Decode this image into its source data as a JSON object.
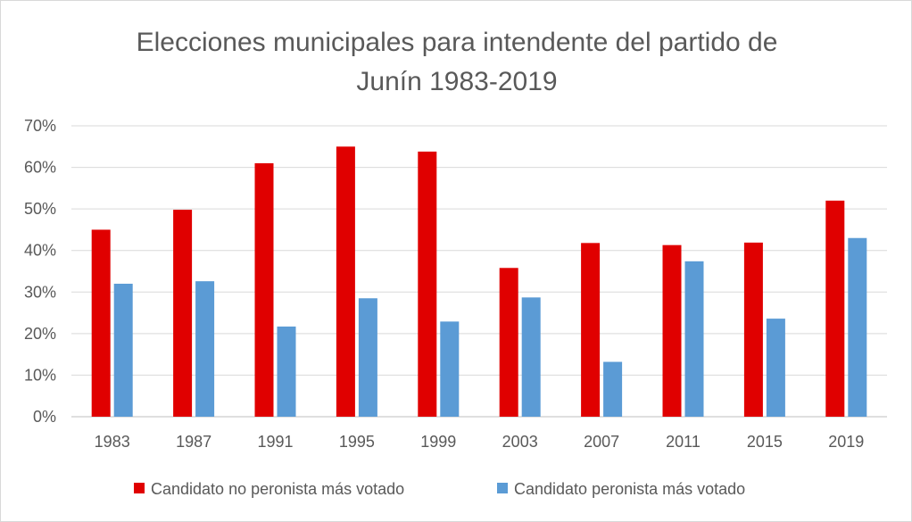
{
  "chart_data": {
    "type": "bar",
    "title_lines": [
      "Elecciones municipales para intendente del partido de",
      "Junín 1983-2019"
    ],
    "categories": [
      "1983",
      "1987",
      "1991",
      "1995",
      "1999",
      "2003",
      "2007",
      "2011",
      "2015",
      "2019"
    ],
    "series": [
      {
        "name": "Candidato no peronista más votado",
        "color": "#e00000",
        "values": [
          45.0,
          49.8,
          61.0,
          65.0,
          63.8,
          35.8,
          41.8,
          41.3,
          41.9,
          52.0
        ]
      },
      {
        "name": "Candidato peronista más votado",
        "color": "#5b9bd5",
        "values": [
          32.0,
          32.6,
          21.7,
          28.5,
          22.9,
          28.7,
          13.2,
          37.4,
          23.6,
          43.0
        ]
      }
    ],
    "ylim": [
      0,
      70
    ],
    "yticks": [
      "0%",
      "10%",
      "20%",
      "30%",
      "40%",
      "50%",
      "60%",
      "70%"
    ],
    "ytick_values": [
      0,
      10,
      20,
      30,
      40,
      50,
      60,
      70
    ],
    "grid": true,
    "legend_position": "bottom",
    "xlabel": "",
    "ylabel": ""
  }
}
